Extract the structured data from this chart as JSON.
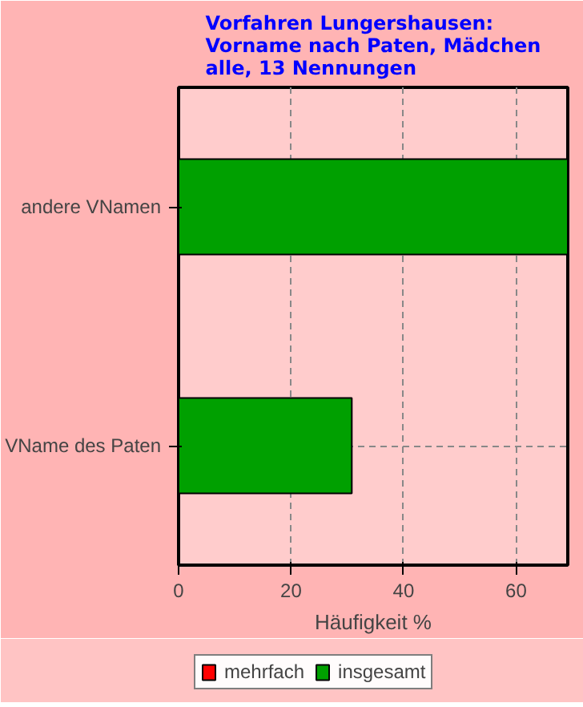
{
  "chart_data": {
    "type": "bar",
    "orientation": "horizontal",
    "title": "Vorfahren Lungershausen:\nVorname nach Paten, Mädchen\nalle, 13 Nennungen",
    "xlabel": "Häufigkeit %",
    "categories": [
      "andere VNamen",
      "VName des Paten"
    ],
    "series": [
      {
        "name": "mehrfach",
        "color": "#ff0000",
        "values": [
          null,
          null
        ]
      },
      {
        "name": "insgesamt",
        "color": "#00a000",
        "values": [
          69.2,
          30.8
        ]
      }
    ],
    "xlim": [
      0,
      69.2
    ],
    "xticks": [
      0,
      20,
      40,
      60
    ],
    "grid": true,
    "legend": "bottom"
  }
}
